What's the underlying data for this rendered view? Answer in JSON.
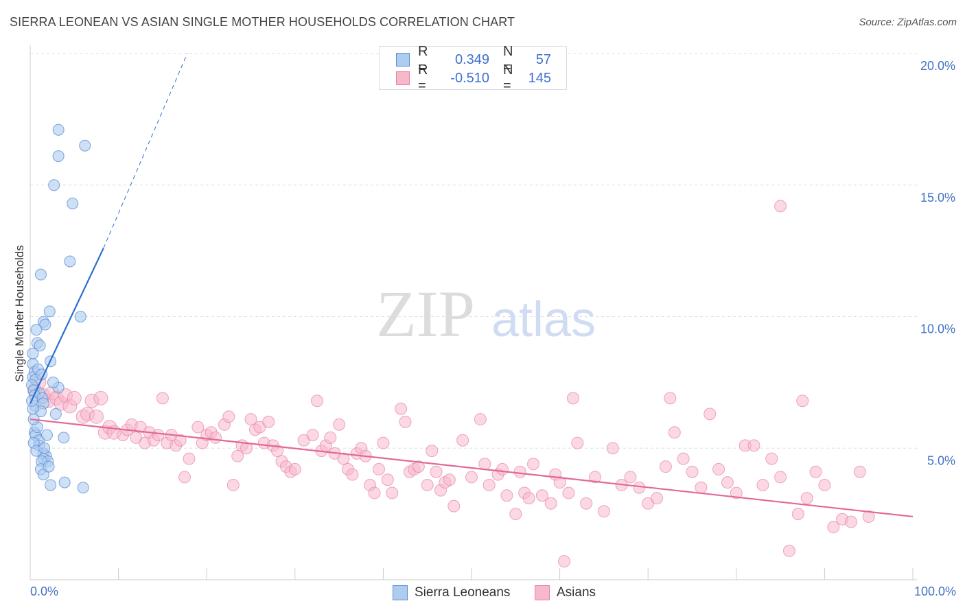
{
  "title": "SIERRA LEONEAN VS ASIAN SINGLE MOTHER HOUSEHOLDS CORRELATION CHART",
  "source": "Source: ZipAtlas.com",
  "watermark": {
    "zip": "ZIP",
    "atlas": "atlas"
  },
  "legend": {
    "r_label": "R =",
    "n_label": "N =",
    "rows": [
      {
        "r": "0.349",
        "n": "57"
      },
      {
        "r": "-0.510",
        "n": "145"
      }
    ]
  },
  "bottom_legend": {
    "series1": "Sierra Leoneans",
    "series2": "Asians"
  },
  "colors": {
    "blue_fill": "#aecbf0",
    "blue_stroke": "#5b8fd6",
    "blue_line": "#2b6fd1",
    "pink_fill": "#f7b8cc",
    "pink_stroke": "#e583a4",
    "pink_line": "#e3679a",
    "grid": "#dedede",
    "tick_text": "#4472c4"
  },
  "chart_data": {
    "type": "scatter",
    "title": "SIERRA LEONEAN VS ASIAN SINGLE MOTHER HOUSEHOLDS CORRELATION CHART",
    "xlabel": "",
    "ylabel": "Single Mother Households",
    "xlim": [
      0,
      100
    ],
    "ylim": [
      0,
      20
    ],
    "x_tick_labels": [
      "0.0%",
      "100.0%"
    ],
    "y_ticks": [
      5,
      10,
      15,
      20
    ],
    "y_tick_labels": [
      "5.0%",
      "10.0%",
      "15.0%",
      "20.0%"
    ],
    "grid": true,
    "legend_position": "top-center",
    "series": [
      {
        "name": "Sierra Leoneans",
        "r": 0.349,
        "n": 57,
        "trend": {
          "x": [
            0.0,
            8.3
          ],
          "y": [
            6.7,
            12.6
          ]
        },
        "trend_extension": {
          "x": [
            8.3,
            17.8
          ],
          "y": [
            12.6,
            20.0
          ]
        },
        "points": [
          [
            3.2,
            17.1
          ],
          [
            6.2,
            16.5
          ],
          [
            3.2,
            16.1
          ],
          [
            2.7,
            15.0
          ],
          [
            4.8,
            14.3
          ],
          [
            4.5,
            12.1
          ],
          [
            1.2,
            11.6
          ],
          [
            2.2,
            10.2
          ],
          [
            5.7,
            10.0
          ],
          [
            1.5,
            9.8
          ],
          [
            1.7,
            9.7
          ],
          [
            0.7,
            9.5
          ],
          [
            0.8,
            9.0
          ],
          [
            1.1,
            8.9
          ],
          [
            2.3,
            8.3
          ],
          [
            0.3,
            8.2
          ],
          [
            0.5,
            7.9
          ],
          [
            0.3,
            7.7
          ],
          [
            0.6,
            7.6
          ],
          [
            0.2,
            7.4
          ],
          [
            0.4,
            7.2
          ],
          [
            3.2,
            7.3
          ],
          [
            1.0,
            7.1
          ],
          [
            0.5,
            7.0
          ],
          [
            1.4,
            6.9
          ],
          [
            0.6,
            6.6
          ],
          [
            1.5,
            6.7
          ],
          [
            1.2,
            6.4
          ],
          [
            0.3,
            6.5
          ],
          [
            0.5,
            5.6
          ],
          [
            0.6,
            5.5
          ],
          [
            1.0,
            5.3
          ],
          [
            3.8,
            5.4
          ],
          [
            1.0,
            5.1
          ],
          [
            1.5,
            4.8
          ],
          [
            1.8,
            4.7
          ],
          [
            1.5,
            4.6
          ],
          [
            2.0,
            4.5
          ],
          [
            1.3,
            4.5
          ],
          [
            1.2,
            4.2
          ],
          [
            1.5,
            4.0
          ],
          [
            2.3,
            3.6
          ],
          [
            3.9,
            3.7
          ],
          [
            6.0,
            3.5
          ],
          [
            0.4,
            5.2
          ],
          [
            0.8,
            5.8
          ],
          [
            1.9,
            5.5
          ],
          [
            0.2,
            6.8
          ],
          [
            2.6,
            7.5
          ],
          [
            0.9,
            8.0
          ],
          [
            1.3,
            7.8
          ],
          [
            0.4,
            6.1
          ],
          [
            2.9,
            6.3
          ],
          [
            0.7,
            4.9
          ],
          [
            1.6,
            5.0
          ],
          [
            2.1,
            4.3
          ],
          [
            0.3,
            8.6
          ]
        ]
      },
      {
        "name": "Asians",
        "r": -0.51,
        "n": 145,
        "trend": {
          "x": [
            0,
            100
          ],
          "y": [
            6.1,
            2.4
          ]
        },
        "points": [
          [
            0.5,
            7.2
          ],
          [
            1.0,
            7.5
          ],
          [
            1.5,
            7.0
          ],
          [
            2.0,
            6.8
          ],
          [
            2.5,
            7.1
          ],
          [
            3.0,
            6.9
          ],
          [
            3.5,
            6.7
          ],
          [
            4.0,
            7.0
          ],
          [
            4.5,
            6.6
          ],
          [
            5.0,
            6.9
          ],
          [
            6.0,
            6.2
          ],
          [
            6.5,
            6.3
          ],
          [
            7.0,
            6.8
          ],
          [
            7.5,
            6.2
          ],
          [
            8.0,
            6.9
          ],
          [
            8.5,
            5.6
          ],
          [
            9.0,
            5.8
          ],
          [
            9.5,
            5.6
          ],
          [
            10.5,
            5.5
          ],
          [
            11.0,
            5.7
          ],
          [
            11.5,
            5.9
          ],
          [
            12.0,
            5.4
          ],
          [
            12.5,
            5.8
          ],
          [
            13.0,
            5.2
          ],
          [
            13.5,
            5.6
          ],
          [
            14.0,
            5.3
          ],
          [
            14.5,
            5.5
          ],
          [
            15.0,
            6.9
          ],
          [
            15.5,
            5.2
          ],
          [
            16.0,
            5.5
          ],
          [
            16.5,
            5.1
          ],
          [
            17.0,
            5.3
          ],
          [
            17.5,
            3.9
          ],
          [
            18.0,
            4.6
          ],
          [
            19.0,
            5.8
          ],
          [
            19.5,
            5.2
          ],
          [
            20.0,
            5.5
          ],
          [
            20.5,
            5.6
          ],
          [
            21.0,
            5.4
          ],
          [
            22.0,
            5.9
          ],
          [
            22.5,
            6.2
          ],
          [
            23.0,
            3.6
          ],
          [
            23.5,
            4.7
          ],
          [
            24.0,
            5.1
          ],
          [
            24.5,
            5.0
          ],
          [
            25.0,
            6.1
          ],
          [
            25.5,
            5.7
          ],
          [
            26.0,
            5.8
          ],
          [
            26.5,
            5.2
          ],
          [
            27.0,
            6.0
          ],
          [
            27.5,
            5.1
          ],
          [
            28.0,
            4.9
          ],
          [
            28.5,
            4.5
          ],
          [
            29.0,
            4.3
          ],
          [
            29.5,
            4.1
          ],
          [
            30.0,
            4.2
          ],
          [
            31.0,
            5.3
          ],
          [
            32.0,
            5.5
          ],
          [
            32.5,
            6.8
          ],
          [
            33.0,
            4.9
          ],
          [
            33.5,
            5.1
          ],
          [
            34.0,
            5.4
          ],
          [
            34.5,
            4.8
          ],
          [
            35.0,
            5.9
          ],
          [
            35.5,
            4.6
          ],
          [
            36.0,
            4.2
          ],
          [
            36.5,
            4.0
          ],
          [
            37.0,
            4.8
          ],
          [
            37.5,
            5.0
          ],
          [
            38.0,
            4.7
          ],
          [
            38.5,
            3.6
          ],
          [
            39.0,
            3.3
          ],
          [
            39.5,
            4.2
          ],
          [
            40.0,
            5.2
          ],
          [
            40.5,
            3.8
          ],
          [
            41.0,
            3.3
          ],
          [
            42.0,
            6.5
          ],
          [
            42.5,
            6.0
          ],
          [
            43.0,
            4.1
          ],
          [
            43.5,
            4.2
          ],
          [
            44.0,
            4.3
          ],
          [
            45.0,
            3.6
          ],
          [
            45.5,
            4.9
          ],
          [
            46.0,
            4.1
          ],
          [
            46.5,
            3.4
          ],
          [
            47.0,
            3.7
          ],
          [
            47.5,
            3.8
          ],
          [
            48.0,
            2.8
          ],
          [
            49.0,
            5.3
          ],
          [
            50.0,
            3.9
          ],
          [
            51.0,
            6.1
          ],
          [
            51.5,
            4.4
          ],
          [
            52.0,
            3.6
          ],
          [
            53.0,
            4.0
          ],
          [
            53.5,
            4.2
          ],
          [
            54.0,
            3.2
          ],
          [
            55.0,
            2.5
          ],
          [
            55.5,
            4.1
          ],
          [
            56.0,
            3.3
          ],
          [
            56.5,
            3.1
          ],
          [
            57.0,
            4.4
          ],
          [
            58.0,
            3.2
          ],
          [
            59.0,
            2.9
          ],
          [
            59.5,
            4.0
          ],
          [
            60.0,
            3.7
          ],
          [
            61.0,
            3.3
          ],
          [
            62.0,
            5.2
          ],
          [
            63.0,
            2.9
          ],
          [
            64.0,
            3.9
          ],
          [
            65.0,
            2.6
          ],
          [
            66.0,
            5.0
          ],
          [
            67.0,
            3.6
          ],
          [
            68.0,
            3.9
          ],
          [
            69.0,
            3.5
          ],
          [
            70.0,
            2.9
          ],
          [
            71.0,
            3.1
          ],
          [
            72.0,
            4.3
          ],
          [
            72.5,
            6.9
          ],
          [
            73.0,
            5.6
          ],
          [
            74.0,
            4.6
          ],
          [
            75.0,
            4.1
          ],
          [
            76.0,
            3.5
          ],
          [
            77.0,
            6.3
          ],
          [
            78.0,
            4.2
          ],
          [
            79.0,
            3.7
          ],
          [
            80.0,
            3.3
          ],
          [
            81.0,
            5.1
          ],
          [
            82.0,
            5.1
          ],
          [
            83.0,
            3.6
          ],
          [
            84.0,
            4.6
          ],
          [
            85.0,
            3.9
          ],
          [
            86.0,
            1.1
          ],
          [
            87.0,
            2.5
          ],
          [
            88.0,
            3.1
          ],
          [
            89.0,
            4.1
          ],
          [
            90.0,
            3.6
          ],
          [
            91.0,
            2.0
          ],
          [
            92.0,
            2.3
          ],
          [
            93.0,
            2.2
          ],
          [
            94.0,
            4.1
          ],
          [
            95.0,
            2.4
          ],
          [
            85.0,
            14.2
          ],
          [
            87.5,
            6.8
          ],
          [
            60.5,
            0.7
          ],
          [
            61.5,
            6.9
          ]
        ]
      }
    ]
  }
}
